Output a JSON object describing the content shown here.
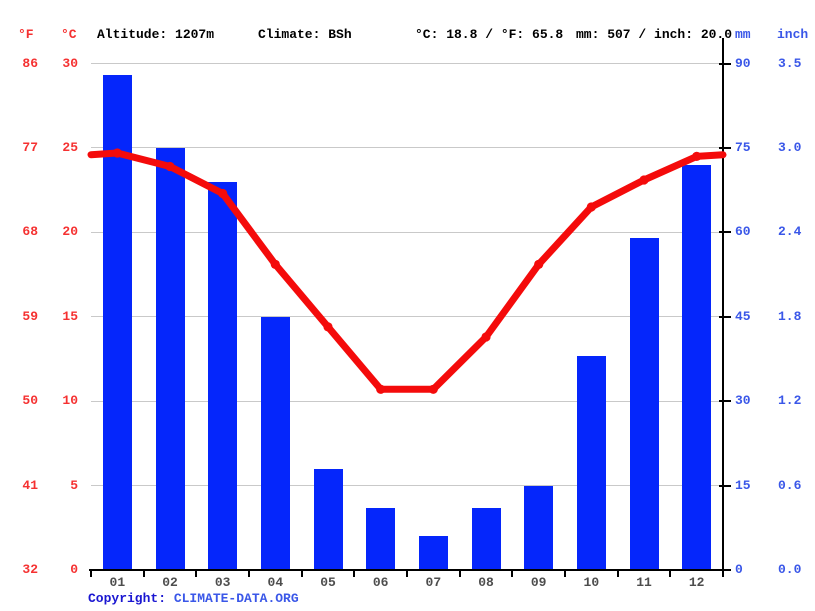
{
  "header": {
    "fahrenheit_unit": "°F",
    "celsius_unit": "°C",
    "altitude": "Altitude: 1207m",
    "climate": "Climate: BSh",
    "temperature_summary": "°C: 18.8 / °F: 65.8",
    "precipitation_summary": "mm: 507 / inch: 20.0",
    "mm_unit": "mm",
    "inch_unit": "inch"
  },
  "axis_labels": {
    "fahrenheit": [
      "86",
      "77",
      "68",
      "59",
      "50",
      "41",
      "32"
    ],
    "celsius": [
      "30",
      "25",
      "20",
      "15",
      "10",
      "5",
      "0"
    ],
    "mm": [
      "90",
      "75",
      "60",
      "45",
      "30",
      "15",
      "0"
    ],
    "inch": [
      "3.5",
      "3.0",
      "2.4",
      "1.8",
      "1.2",
      "0.6",
      "0.0"
    ]
  },
  "chart_data": {
    "type": "climograph (bar + line)",
    "categories": [
      "01",
      "02",
      "03",
      "04",
      "05",
      "06",
      "07",
      "08",
      "09",
      "10",
      "11",
      "12"
    ],
    "series": [
      {
        "name": "Precipitation (mm)",
        "type": "bar",
        "values": [
          88,
          75,
          69,
          45,
          18,
          11,
          6,
          11,
          15,
          38,
          59,
          72
        ]
      },
      {
        "name": "Temperature (°C)",
        "type": "line",
        "values": [
          24.7,
          23.9,
          22.3,
          18.1,
          14.4,
          10.7,
          10.7,
          13.8,
          18.1,
          21.5,
          23.1,
          24.5
        ]
      }
    ],
    "edge_temperature_c": 24.6,
    "left_axis": {
      "label": "°C",
      "range": [
        0,
        30
      ],
      "ticks": [
        0,
        5,
        10,
        15,
        20,
        25,
        30
      ]
    },
    "left_axis_secondary": {
      "label": "°F",
      "ticks": [
        32,
        41,
        50,
        59,
        68,
        77,
        86
      ]
    },
    "right_axis": {
      "label": "mm",
      "range": [
        0,
        90
      ],
      "ticks": [
        0,
        15,
        30,
        45,
        60,
        75,
        90
      ]
    },
    "right_axis_secondary": {
      "label": "inch",
      "ticks": [
        0.0,
        0.6,
        1.2,
        1.8,
        2.4,
        3.0,
        3.5
      ]
    },
    "grid": true,
    "legend": "none",
    "annotations": {
      "altitude": "Altitude: 1207m",
      "climate_classification": "Climate: BSh",
      "mean_annual_temperature": "°C: 18.8 / °F: 65.8",
      "annual_precipitation": "mm: 507 / inch: 20.0"
    }
  },
  "footer": {
    "copyright_label": "Copyright: ",
    "copyright_link": "CLIMATE-DATA.ORG"
  },
  "colors": {
    "bar": "#0526fb",
    "line": "#f40b0b",
    "red_text": "#f53131",
    "blue_text": "#3a57e8",
    "grid": "#c9c9c9",
    "month_text": "#4d4d4d",
    "copyright_label": "#1a16d1",
    "copyright_link": "#3a57e8"
  }
}
